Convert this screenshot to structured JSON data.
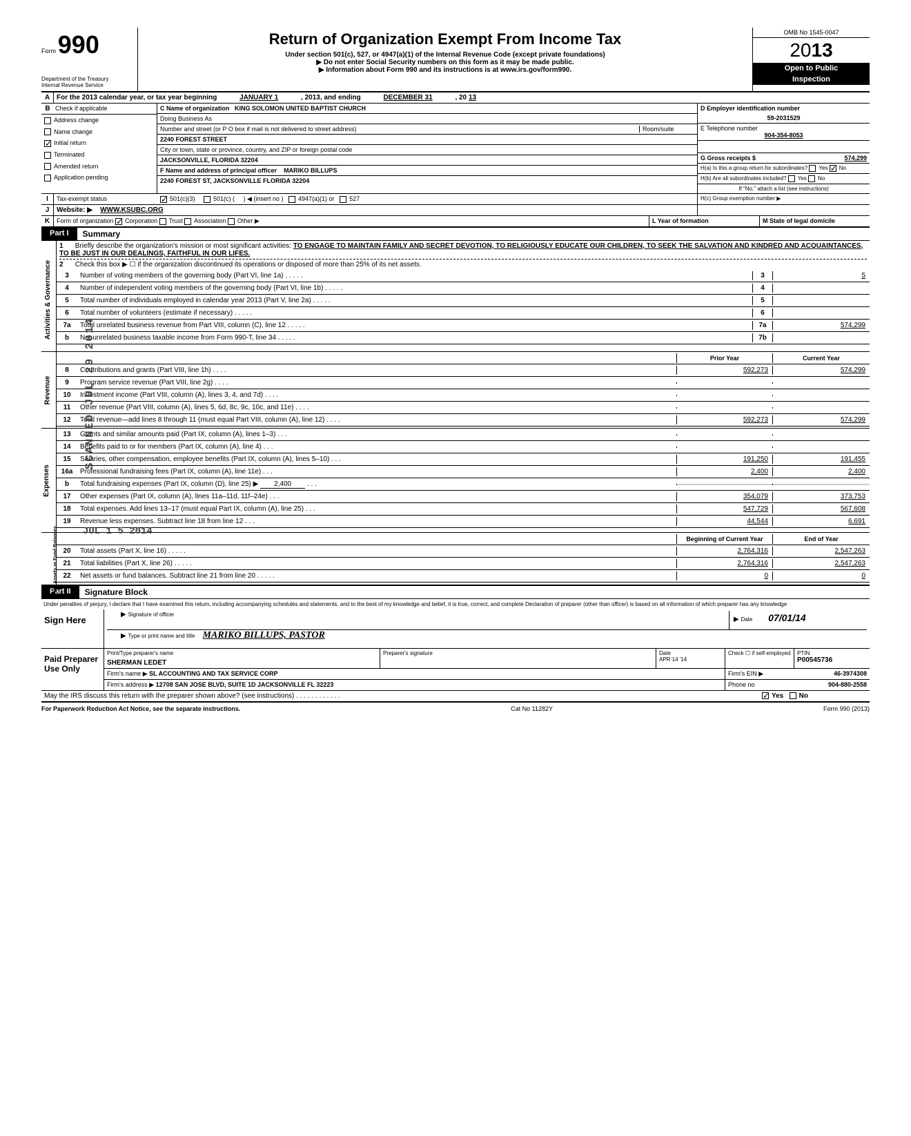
{
  "header": {
    "form_label": "Form",
    "form_number": "990",
    "title": "Return of Organization Exempt From Income Tax",
    "subtitle1": "Under section 501(c), 527, or 4947(a)(1) of the Internal Revenue Code (except private foundations)",
    "subtitle2": "▶ Do not enter Social Security numbers on this form as it may be made public.",
    "subtitle3": "▶ Information about Form 990 and its instructions is at www.irs.gov/form990.",
    "dept": "Department of the Treasury",
    "irs": "Internal Revenue Service",
    "omb": "OMB No 1545-0047",
    "year_prefix": "20",
    "year_bold": "13",
    "open": "Open to Public",
    "inspection": "Inspection"
  },
  "section_a": {
    "letter": "A",
    "text": "For the 2013 calendar year, or tax year beginning",
    "begin": "JANUARY 1",
    "mid": ", 2013, and ending",
    "end": "DECEMBER 31",
    "year_suffix": ", 20",
    "year_val": "13"
  },
  "section_b": {
    "letter": "B",
    "check_label": "Check if applicable",
    "items": [
      "Address change",
      "Name change",
      "Initial return",
      "Terminated",
      "Amended return",
      "Application pending"
    ]
  },
  "section_c": {
    "label": "C Name of organization",
    "name": "KING SOLOMON UNITED BAPTIST CHURCH",
    "dba_label": "Doing Business As",
    "addr_label": "Number and street (or P O  box if mail is not delivered to street address)",
    "room_label": "Room/suite",
    "street": "2240 FOREST STREET",
    "city_label": "City or town, state or province, country, and ZIP or foreign postal code",
    "city": "JACKSONVILLE,  FLORIDA 32204"
  },
  "section_d": {
    "label": "D Employer identification number",
    "value": "59-2031529"
  },
  "section_e": {
    "label": "E Telephone number",
    "value": "904-354-8053"
  },
  "section_f": {
    "label": "F Name and address of principal officer",
    "name": "MARIKO BILLUPS",
    "addr": "2240 FOREST ST, JACKSONVILLE FLORIDA 32204"
  },
  "section_g": {
    "label": "G Gross receipts $",
    "value": "574,299"
  },
  "section_h": {
    "a_label": "H(a) Is this a group return for subordinates?",
    "b_label": "H(b) Are all subordinates included?",
    "no_note": "If \"No,\" attach a list (see instructions)",
    "c_label": "H(c) Group exemption number ▶",
    "yes": "Yes",
    "no": "No"
  },
  "section_i": {
    "letter": "I",
    "label": "Tax-exempt status",
    "opt1": "501(c)(3)",
    "opt2": "501(c) (",
    "opt2_note": ") ◀ (insert no )",
    "opt3": "4947(a)(1) or",
    "opt4": "527"
  },
  "section_j": {
    "letter": "J",
    "label": "Website: ▶",
    "value": "WWW.KSUBC.ORG"
  },
  "section_k": {
    "letter": "K",
    "label": "Form of organization",
    "opts": [
      "Corporation",
      "Trust",
      "Association",
      "Other ▶"
    ],
    "l_label": "L Year of formation",
    "m_label": "M State of legal domicile"
  },
  "part1": {
    "label": "Part I",
    "title": "Summary",
    "line1_num": "1",
    "line1_text": "Briefly describe the organization's mission or most significant activities:",
    "mission": "TO ENGAGE TO MAINTAIN FAMILY AND SECRET DEVOTION,  TO RELIGIOUSLY EDUCATE OUR CHILDREN,  TO SEEK THE SALVATION AND KINDRED AND ACQUAINTANCES, TO  BE JUST IN OUR DEALINGS,  FAITHFUL IN OUR LIFES.",
    "line2_num": "2",
    "line2_text": "Check this box ▶ ☐ if the organization discontinued its operations or disposed of more than 25% of its net assets.",
    "lines_gov": [
      {
        "num": "3",
        "text": "Number of voting members of the governing body (Part VI, line 1a)",
        "box": "3",
        "val": "5"
      },
      {
        "num": "4",
        "text": "Number of independent voting members of the governing body (Part VI, line 1b)",
        "box": "4",
        "val": ""
      },
      {
        "num": "5",
        "text": "Total number of individuals employed in calendar year 2013 (Part V, line 2a)",
        "box": "5",
        "val": ""
      },
      {
        "num": "6",
        "text": "Total number of volunteers (estimate if necessary)",
        "box": "6",
        "val": ""
      },
      {
        "num": "7a",
        "text": "Total unrelated business revenue from Part VIII, column (C), line 12",
        "box": "7a",
        "val": "574,299"
      },
      {
        "num": "b",
        "text": "Net unrelated business taxable income from Form 990-T, line 34",
        "box": "7b",
        "val": ""
      }
    ],
    "prior_label": "Prior Year",
    "curr_label": "Current Year",
    "lines_rev": [
      {
        "num": "8",
        "text": "Contributions and grants (Part VIII, line 1h)",
        "prior": "592,273",
        "curr": "574,299"
      },
      {
        "num": "9",
        "text": "Program service revenue (Part VIII, line 2g)",
        "prior": "",
        "curr": ""
      },
      {
        "num": "10",
        "text": "Investment income (Part VIII, column (A), lines 3, 4, and 7d)",
        "prior": "",
        "curr": ""
      },
      {
        "num": "11",
        "text": "Other revenue (Part VIII, column (A), lines 5, 6d, 8c, 9c, 10c, and 11e)",
        "prior": "",
        "curr": ""
      },
      {
        "num": "12",
        "text": "Total revenue—add lines 8 through 11 (must equal Part VIII, column (A), line 12)",
        "prior": "592,273",
        "curr": "574,299"
      }
    ],
    "lines_exp": [
      {
        "num": "13",
        "text": "Grants and similar amounts paid (Part IX, column (A), lines 1–3)",
        "prior": "",
        "curr": ""
      },
      {
        "num": "14",
        "text": "Benefits paid to or for members (Part IX, column (A), line 4)",
        "prior": "",
        "curr": ""
      },
      {
        "num": "15",
        "text": "Salaries, other compensation, employee benefits (Part IX, column (A), lines 5–10)",
        "prior": "191,250",
        "curr": "191,455"
      },
      {
        "num": "16a",
        "text": "Professional fundraising fees (Part IX, column (A),  line 11e)",
        "prior": "2,400",
        "curr": "2,400"
      },
      {
        "num": "b",
        "text": "Total fundraising expenses (Part IX, column (D), line 25) ▶",
        "inline": "2,400",
        "prior_shaded": true,
        "curr_shaded": true
      },
      {
        "num": "17",
        "text": "Other expenses (Part IX, column (A), lines 11a–11d, 11f–24e)",
        "prior": "354,079",
        "curr": "373,753"
      },
      {
        "num": "18",
        "text": "Total expenses. Add lines 13–17 (must equal Part IX, column (A), line 25)",
        "prior": "547,729",
        "curr": "567,608"
      },
      {
        "num": "19",
        "text": "Revenue less expenses. Subtract line 18 from line 12",
        "prior": "44,544",
        "curr": "6,691"
      }
    ],
    "begin_label": "Beginning of Current Year",
    "end_label": "End of Year",
    "lines_net": [
      {
        "num": "20",
        "text": "Total assets (Part X, line 16)",
        "prior": "2,764,316",
        "curr": "2,547,263"
      },
      {
        "num": "21",
        "text": "Total liabilities (Part X, line 26)",
        "prior": "2,764,316",
        "curr": "2,547,263"
      },
      {
        "num": "22",
        "text": "Net assets or fund balances. Subtract line 21 from line 20",
        "prior": "0",
        "curr": "0"
      }
    ],
    "vert_gov": "Activities & Governance",
    "vert_rev": "Revenue",
    "vert_exp": "Expenses",
    "vert_net": "Net Assets or Fund Balances"
  },
  "part2": {
    "label": "Part II",
    "title": "Signature Block",
    "declaration": "Under penalties of perjury, I declare that I have examined this return, including accompanying schedules and statements, and to the best of my knowledge and belief, it is true, correct, and complete  Declaration of preparer (other than officer) is based on all information of which preparer has any knowledge",
    "sign_here": "Sign Here",
    "sig_officer": "Signature of officer",
    "date_label": "Date",
    "date_val": "07/01/14",
    "type_name": "Type or print name and title",
    "name_val": "MARIKO    BILLUPS,    PASTOR",
    "paid_prep": "Paid Preparer Use Only",
    "prep_name_label": "Print/Type preparer's name",
    "prep_name": "SHERMAN LEDET",
    "prep_sig_label": "Preparer's signature",
    "prep_date_label": "Date",
    "prep_date": "APR 14 '14",
    "check_self": "Check ☐ if self-employed",
    "ptin_label": "PTIN",
    "ptin": "P00545736",
    "firm_name_label": "Firm's name    ▶",
    "firm_name": "SL ACCOUNTING AND TAX SERVICE CORP",
    "firm_ein_label": "Firm's EIN  ▶",
    "firm_ein": "46-3974308",
    "firm_addr_label": "Firm's address  ▶",
    "firm_addr": "12708 SAN JOSE BLVD, SUITE 1D JACKSONVILLE FL 32223",
    "phone_label": "Phone no",
    "phone": "904-880-2558",
    "irs_discuss": "May the IRS discuss this return with the preparer shown above? (see instructions)",
    "yes": "Yes",
    "no": "No"
  },
  "footer": {
    "left": "For Paperwork Reduction Act Notice, see the separate instructions.",
    "center": "Cat  No  11282Y",
    "right": "Form 990 (2013)"
  },
  "stamps": {
    "scanned": "SCANNED JUL 29 2014",
    "received": "JUL  1 5  2014"
  }
}
